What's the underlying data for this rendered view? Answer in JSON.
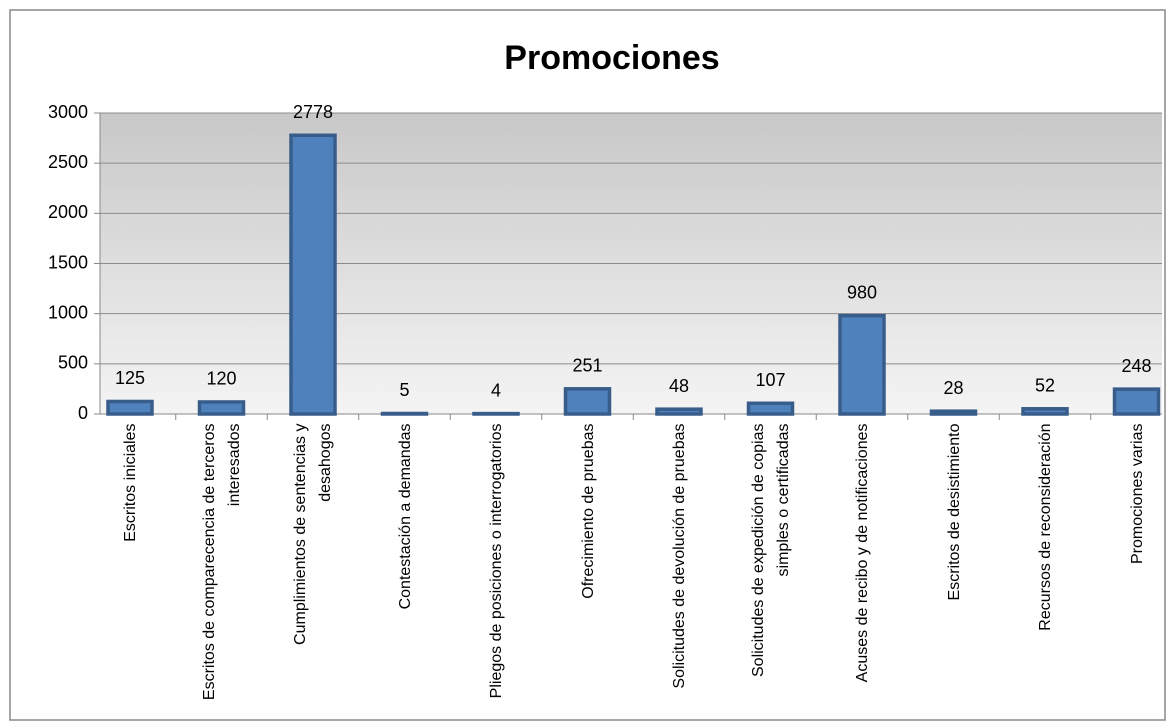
{
  "chart_data": {
    "type": "bar",
    "title": "Promociones",
    "categories": [
      "Escritos iniciales",
      "Escritos de comparecencia de terceros interesados",
      "Cumplimientos de sentencias y desahogos",
      "Contestación a demandas",
      "Pliegos de posiciones o interrogatorios",
      "Ofrecimiento de pruebas",
      "Solicitudes de devolución de pruebas",
      "Solicitudes de expedición de copias simples o certificadas",
      "Acuses de recibo y de notificaciones",
      "Escritos de desistimiento",
      "Recursos de reconsideración",
      "Promociones varias"
    ],
    "values": [
      125,
      120,
      2778,
      5,
      4,
      251,
      48,
      107,
      980,
      28,
      52,
      248
    ],
    "color": "#4f81bd",
    "ylim": [
      0,
      3000
    ],
    "yticks": [
      0,
      500,
      1000,
      1500,
      2000,
      2500,
      3000
    ],
    "grid": true
  }
}
